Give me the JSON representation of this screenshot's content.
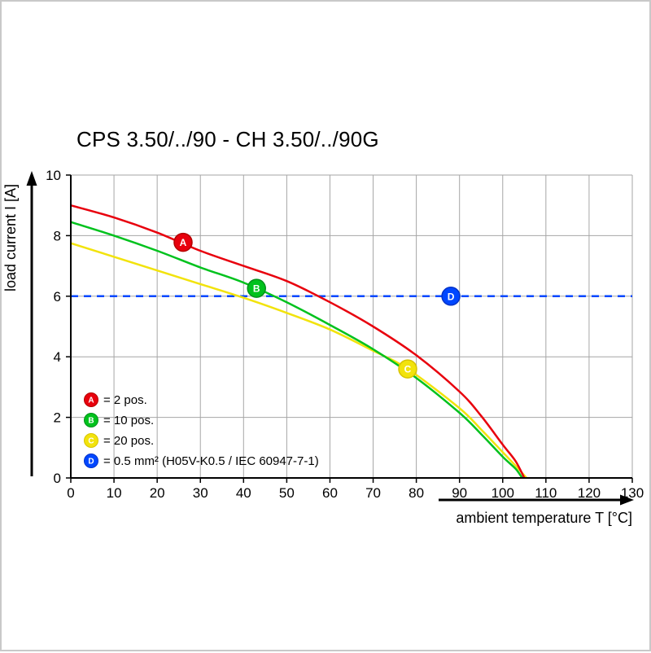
{
  "page": {
    "background": "#ffffff",
    "border_color": "#c9c9c9"
  },
  "chart_data": {
    "type": "line",
    "title": "CPS 3.50/../90 - CH 3.50/../90G",
    "xlabel": "ambient temperature T [°C]",
    "ylabel": "load current I [A]",
    "xlim": [
      0,
      130
    ],
    "ylim": [
      0,
      10
    ],
    "x_ticks": [
      0,
      10,
      20,
      30,
      40,
      50,
      60,
      70,
      80,
      90,
      100,
      110,
      120,
      130
    ],
    "y_ticks": [
      0,
      2,
      4,
      6,
      8,
      10
    ],
    "grid": true,
    "colors": {
      "grid": "#a6a6a6",
      "axis": "#000000",
      "text": "#000000"
    },
    "legend_position": "inside-bottom-left",
    "series": [
      {
        "key": "A",
        "legend_text": "= 2 pos.",
        "color": "#e8000d",
        "marker_stroke": "#b40000",
        "dashed": false,
        "points": [
          [
            0,
            9.0
          ],
          [
            10,
            8.6
          ],
          [
            20,
            8.1
          ],
          [
            30,
            7.5
          ],
          [
            40,
            7.0
          ],
          [
            50,
            6.5
          ],
          [
            60,
            5.8
          ],
          [
            70,
            5.0
          ],
          [
            80,
            4.05
          ],
          [
            90,
            2.85
          ],
          [
            95,
            2.05
          ],
          [
            100,
            1.1
          ],
          [
            103,
            0.55
          ],
          [
            105,
            0
          ]
        ],
        "marker": [
          26,
          7.78
        ]
      },
      {
        "key": "B",
        "legend_text": "= 10 pos.",
        "color": "#00c21d",
        "marker_stroke": "#00911a",
        "dashed": false,
        "points": [
          [
            0,
            8.45
          ],
          [
            10,
            8.0
          ],
          [
            20,
            7.5
          ],
          [
            30,
            6.95
          ],
          [
            40,
            6.45
          ],
          [
            50,
            5.8
          ],
          [
            60,
            5.05
          ],
          [
            70,
            4.25
          ],
          [
            80,
            3.3
          ],
          [
            90,
            2.15
          ],
          [
            95,
            1.45
          ],
          [
            100,
            0.7
          ],
          [
            103,
            0.3
          ],
          [
            104.5,
            0
          ]
        ],
        "marker": [
          43,
          6.26
        ]
      },
      {
        "key": "C",
        "legend_text": "= 20 pos.",
        "color": "#f2e30c",
        "marker_stroke": "#d8c400",
        "dashed": false,
        "points": [
          [
            0,
            7.75
          ],
          [
            10,
            7.3
          ],
          [
            20,
            6.85
          ],
          [
            30,
            6.4
          ],
          [
            40,
            5.95
          ],
          [
            50,
            5.45
          ],
          [
            60,
            4.9
          ],
          [
            70,
            4.2
          ],
          [
            78,
            3.6
          ],
          [
            90,
            2.3
          ],
          [
            95,
            1.6
          ],
          [
            100,
            0.85
          ],
          [
            103,
            0.4
          ],
          [
            105.5,
            0
          ]
        ],
        "marker": [
          78,
          3.6
        ]
      },
      {
        "key": "D",
        "legend_text": "= 0.5 mm² (H05V-K0.5 / IEC 60947-7-1)",
        "color": "#0047ff",
        "marker_stroke": "#0032c8",
        "dashed": true,
        "points": [
          [
            0,
            6
          ],
          [
            130,
            6
          ]
        ],
        "marker": [
          88,
          6
        ]
      }
    ]
  }
}
